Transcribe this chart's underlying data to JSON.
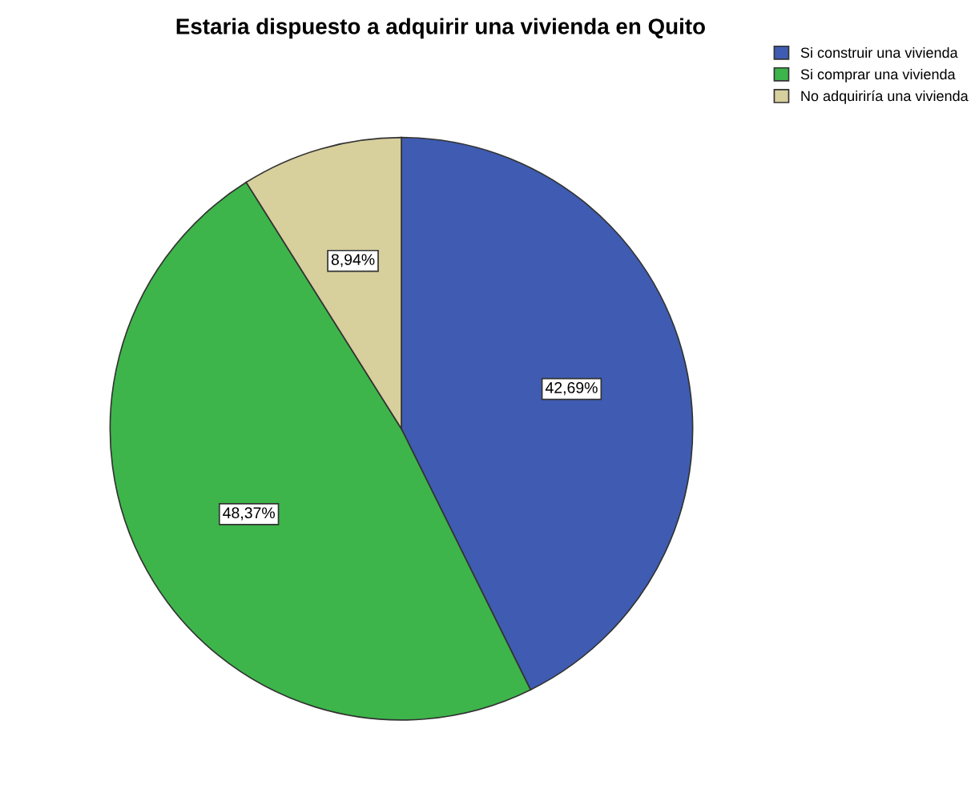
{
  "chart_data": {
    "type": "pie",
    "title": "Estaria dispuesto a adquirir una vivienda en Quito",
    "categories": [
      "Si construir una vivienda",
      "Si comprar una vivienda",
      "No adquiriría una vivienda"
    ],
    "values": [
      42.69,
      48.37,
      8.94
    ],
    "value_labels": [
      "42,69%",
      "48,37%",
      "8,94%"
    ],
    "colors": [
      "#3f5cb2",
      "#3db54a",
      "#d7cf9c"
    ],
    "legend": "top right"
  }
}
